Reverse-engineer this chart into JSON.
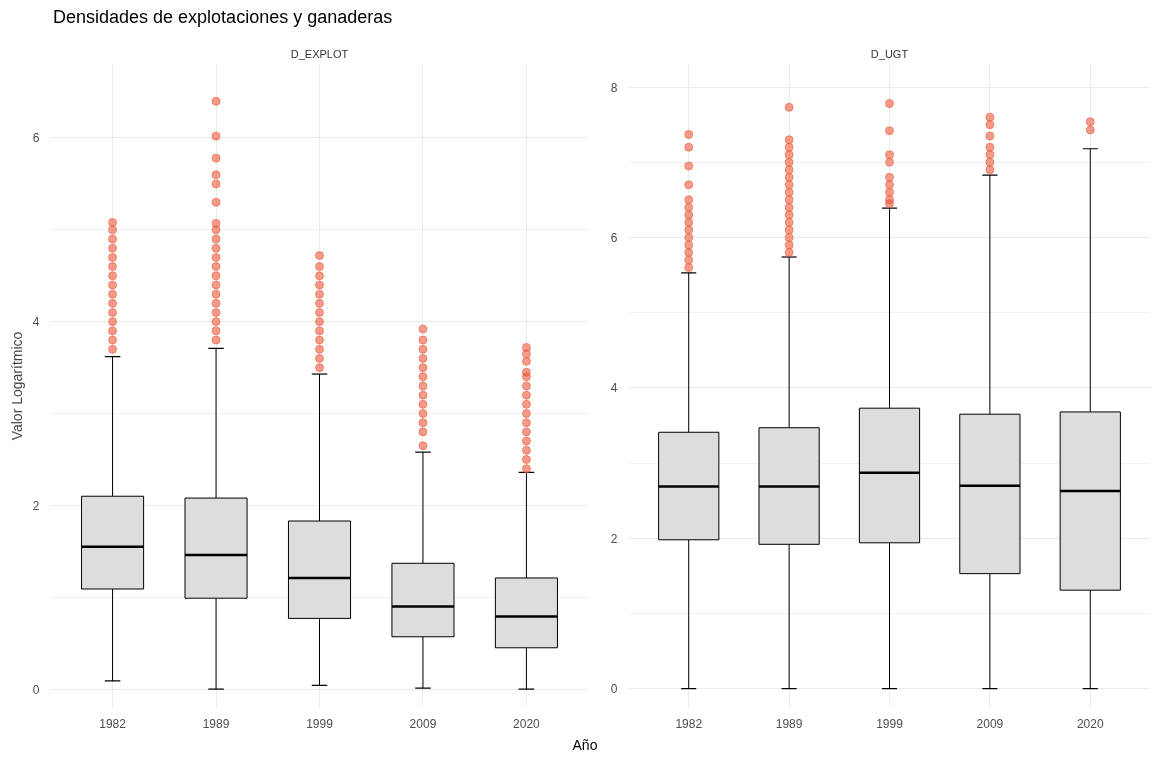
{
  "chart_data": [
    {
      "type": "box",
      "title": "Densidades de explotaciones y ganaderas",
      "subtitle": "D_EXPLOT",
      "xlabel": "Año",
      "ylabel": "Valor Logarítmico",
      "categories": [
        "1982",
        "1989",
        "1999",
        "2009",
        "2020"
      ],
      "ylim": [
        -0.2,
        6.8
      ],
      "yticks": [
        0,
        2,
        4,
        6
      ],
      "grid": true,
      "series": [
        {
          "color": "#dddddd",
          "boxes": [
            {
              "low": 0.09,
              "q1": 1.09,
              "median": 1.55,
              "q3": 2.1,
              "high": 3.62,
              "outliers": [
                3.7,
                3.8,
                3.9,
                4.0,
                4.1,
                4.2,
                4.3,
                4.4,
                4.5,
                4.6,
                4.7,
                4.8,
                4.9,
                5.0,
                5.08
              ]
            },
            {
              "low": 0,
              "q1": 0.99,
              "median": 1.46,
              "q3": 2.08,
              "high": 3.71,
              "outliers": [
                3.8,
                3.9,
                4.0,
                4.1,
                4.2,
                4.3,
                4.4,
                4.5,
                4.6,
                4.7,
                4.8,
                4.9,
                5.0,
                5.07,
                5.3,
                5.5,
                5.6,
                5.78,
                6.02,
                6.4
              ]
            },
            {
              "low": 0.04,
              "q1": 0.77,
              "median": 1.21,
              "q3": 1.83,
              "high": 3.43,
              "outliers": [
                3.5,
                3.6,
                3.7,
                3.8,
                3.9,
                4.0,
                4.1,
                4.2,
                4.3,
                4.4,
                4.5,
                4.6,
                4.72
              ]
            },
            {
              "low": 0.01,
              "q1": 0.57,
              "median": 0.9,
              "q3": 1.37,
              "high": 2.58,
              "outliers": [
                2.65,
                2.8,
                2.9,
                3.0,
                3.1,
                3.2,
                3.3,
                3.4,
                3.5,
                3.6,
                3.7,
                3.8,
                3.92
              ]
            },
            {
              "low": 0,
              "q1": 0.45,
              "median": 0.79,
              "q3": 1.21,
              "high": 2.36,
              "outliers": [
                2.4,
                2.5,
                2.6,
                2.7,
                2.8,
                2.9,
                3.0,
                3.1,
                3.2,
                3.3,
                3.4,
                3.45,
                3.57,
                3.65,
                3.72
              ]
            }
          ]
        }
      ]
    },
    {
      "type": "box",
      "subtitle": "D_UGT",
      "categories": [
        "1982",
        "1989",
        "1999",
        "2009",
        "2020"
      ],
      "ylim": [
        -0.25,
        8.3
      ],
      "yticks": [
        0,
        2,
        4,
        6,
        8
      ],
      "grid": true,
      "series": [
        {
          "color": "#dddddd",
          "boxes": [
            {
              "low": 0,
              "q1": 1.98,
              "median": 2.69,
              "q3": 3.41,
              "high": 5.53,
              "outliers": [
                5.6,
                5.7,
                5.8,
                5.9,
                6.0,
                6.1,
                6.2,
                6.3,
                6.4,
                6.5,
                6.7,
                6.95,
                7.2,
                7.37
              ]
            },
            {
              "low": 0,
              "q1": 1.92,
              "median": 2.69,
              "q3": 3.47,
              "high": 5.74,
              "outliers": [
                5.8,
                5.9,
                6.0,
                6.1,
                6.2,
                6.3,
                6.4,
                6.5,
                6.6,
                6.7,
                6.8,
                6.9,
                7.0,
                7.1,
                7.2,
                7.3,
                7.73
              ]
            },
            {
              "low": 0,
              "q1": 1.94,
              "median": 2.87,
              "q3": 3.73,
              "high": 6.39,
              "outliers": [
                6.45,
                6.5,
                6.6,
                6.7,
                6.8,
                7.0,
                7.1,
                7.42,
                7.78
              ]
            },
            {
              "low": 0,
              "q1": 1.53,
              "median": 2.7,
              "q3": 3.65,
              "high": 6.83,
              "outliers": [
                6.9,
                7.0,
                7.1,
                7.2,
                7.35,
                7.5,
                7.6
              ]
            },
            {
              "low": 0,
              "q1": 1.31,
              "median": 2.63,
              "q3": 3.68,
              "high": 7.18,
              "outliers": [
                7.43,
                7.54
              ]
            }
          ]
        }
      ]
    }
  ]
}
